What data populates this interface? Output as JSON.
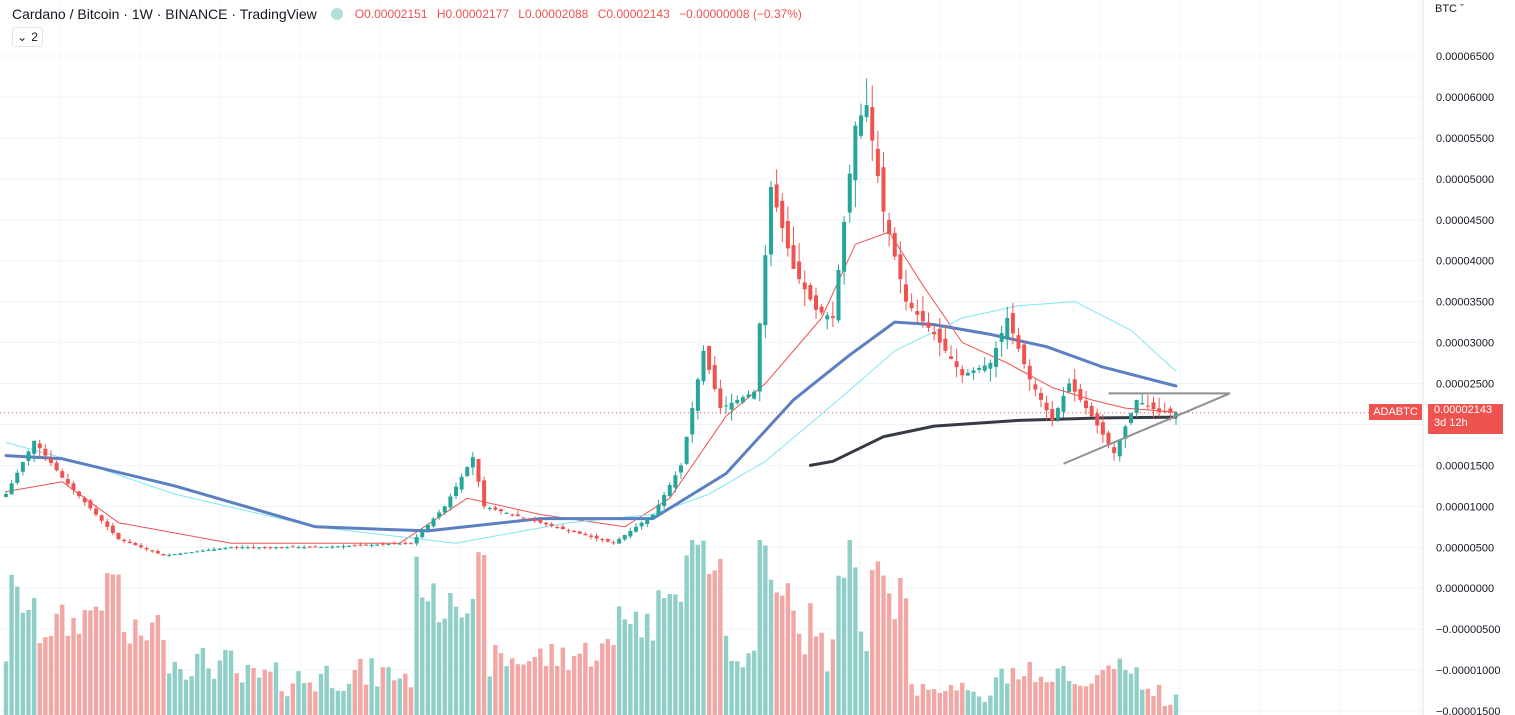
{
  "header": {
    "symbol_title": "Cardano / Bitcoin · 1W · BINANCE · TradingView",
    "market_status": "open",
    "ohlc": {
      "open_label": "O",
      "open": "0.00002151",
      "high_label": "H",
      "high": "0.00002177",
      "low_label": "L",
      "low": "0.00002088",
      "close_label": "C",
      "close": "0.00002143",
      "change": "−0.00000008 (−0.37%)"
    },
    "indicator_toggle": "2"
  },
  "price_scale": {
    "currency": "BTC",
    "symbol_tag": "ADABTC",
    "last_price": "0.00002143",
    "countdown": "3d 12h"
  },
  "colors": {
    "up": "#26a69a",
    "down": "#ef5350",
    "vol_up": "#8fcfc8",
    "vol_down": "#f2a7a5",
    "ma_fast": "#ef5350",
    "ma_cyan": "#7ee6f3",
    "ma_blue": "#5b7fc0",
    "ma_black": "#363a45",
    "triangle": "#8f8f94",
    "grid": "#f0f3fa"
  },
  "chart_data": {
    "type": "candlestick",
    "interval": "1W",
    "ylim": [
      -1.5e-05,
      6.9e-05
    ],
    "y_ticks": [
      "0.00006500",
      "0.00006000",
      "0.00005500",
      "0.00005000",
      "0.00004500",
      "0.00004000",
      "0.00003500",
      "0.00003000",
      "0.00002500",
      "0.00002000",
      "0.00001500",
      "0.00001000",
      "0.00000500",
      "0.00000000",
      "−0.00000500",
      "−0.00001000",
      "−0.00001500"
    ],
    "y_tick_values": [
      6.5e-05,
      6e-05,
      5.5e-05,
      5e-05,
      4.5e-05,
      4e-05,
      3.5e-05,
      3e-05,
      2.5e-05,
      2e-05,
      1.5e-05,
      1e-05,
      5e-06,
      0,
      -5e-06,
      -1e-05,
      -1.5e-05
    ],
    "last_close": 2.143e-05,
    "key_levels": [
      {
        "idx": 0,
        "close": 1.15e-05
      },
      {
        "idx": 5,
        "close": 1.8e-05
      },
      {
        "idx": 10,
        "close": 1.35e-05
      },
      {
        "idx": 14,
        "close": 1.05e-05
      },
      {
        "idx": 20,
        "close": 6e-06
      },
      {
        "idx": 28,
        "close": 4e-06
      },
      {
        "idx": 40,
        "close": 5e-06
      },
      {
        "idx": 55,
        "close": 5e-06
      },
      {
        "idx": 72,
        "close": 5.5e-06
      },
      {
        "idx": 78,
        "close": 1e-05
      },
      {
        "idx": 83,
        "close": 1.6e-05
      },
      {
        "idx": 85,
        "close": 1e-05
      },
      {
        "idx": 95,
        "close": 8e-06
      },
      {
        "idx": 108,
        "close": 5.5e-06
      },
      {
        "idx": 115,
        "close": 9e-06
      },
      {
        "idx": 120,
        "close": 1.5e-05
      },
      {
        "idx": 124,
        "close": 2.9e-05
      },
      {
        "idx": 127,
        "close": 2.2e-05
      },
      {
        "idx": 133,
        "close": 2.4e-05
      },
      {
        "idx": 136,
        "close": 4.9e-05
      },
      {
        "idx": 140,
        "close": 3.9e-05
      },
      {
        "idx": 144,
        "close": 3.4e-05
      },
      {
        "idx": 147,
        "close": 3.3e-05
      },
      {
        "idx": 151,
        "close": 5.65e-05
      },
      {
        "idx": 153,
        "close": 5.9e-05
      },
      {
        "idx": 156,
        "close": 4.6e-05
      },
      {
        "idx": 160,
        "close": 3.5e-05
      },
      {
        "idx": 165,
        "close": 3.1e-05
      },
      {
        "idx": 170,
        "close": 2.6e-05
      },
      {
        "idx": 175,
        "close": 2.75e-05
      },
      {
        "idx": 178,
        "close": 3.3e-05
      },
      {
        "idx": 182,
        "close": 2.55e-05
      },
      {
        "idx": 186,
        "close": 2.05e-05
      },
      {
        "idx": 189,
        "close": 2.5e-05
      },
      {
        "idx": 193,
        "close": 2.1e-05
      },
      {
        "idx": 197,
        "close": 1.65e-05
      },
      {
        "idx": 201,
        "close": 2.3e-05
      },
      {
        "idx": 205,
        "close": 2.15e-05
      },
      {
        "idx": 208,
        "close": 2.143e-05
      }
    ],
    "moving_averages": [
      {
        "color": "ma_fast",
        "points": [
          [
            0,
            1.18e-05
          ],
          [
            10,
            1.3e-05
          ],
          [
            20,
            8e-06
          ],
          [
            40,
            5.5e-06
          ],
          [
            70,
            5.5e-06
          ],
          [
            82,
            1.1e-05
          ],
          [
            95,
            9e-06
          ],
          [
            110,
            7.5e-06
          ],
          [
            118,
            1.1e-05
          ],
          [
            128,
            2.1e-05
          ],
          [
            135,
            2.5e-05
          ],
          [
            145,
            3.3e-05
          ],
          [
            151,
            4.2e-05
          ],
          [
            157,
            4.35e-05
          ],
          [
            163,
            3.7e-05
          ],
          [
            170,
            3e-05
          ],
          [
            178,
            2.75e-05
          ],
          [
            186,
            2.45e-05
          ],
          [
            193,
            2.3e-05
          ],
          [
            199,
            2.2e-05
          ],
          [
            208,
            2.15e-05
          ]
        ]
      },
      {
        "color": "ma_cyan",
        "points": [
          [
            0,
            1.78e-05
          ],
          [
            15,
            1.5e-05
          ],
          [
            30,
            1.15e-05
          ],
          [
            55,
            7.5e-06
          ],
          [
            80,
            5.5e-06
          ],
          [
            100,
            8e-06
          ],
          [
            115,
            9e-06
          ],
          [
            125,
            1.15e-05
          ],
          [
            135,
            1.55e-05
          ],
          [
            148,
            2.3e-05
          ],
          [
            158,
            2.9e-05
          ],
          [
            170,
            3.3e-05
          ],
          [
            180,
            3.45e-05
          ],
          [
            190,
            3.5e-05
          ],
          [
            200,
            3.15e-05
          ],
          [
            208,
            2.65e-05
          ]
        ]
      },
      {
        "color": "ma_blue",
        "points": [
          [
            0,
            1.62e-05
          ],
          [
            10,
            1.58e-05
          ],
          [
            30,
            1.25e-05
          ],
          [
            55,
            7.5e-06
          ],
          [
            75,
            7e-06
          ],
          [
            95,
            8.5e-06
          ],
          [
            115,
            8.5e-06
          ],
          [
            128,
            1.4e-05
          ],
          [
            140,
            2.3e-05
          ],
          [
            150,
            2.85e-05
          ],
          [
            158,
            3.25e-05
          ],
          [
            165,
            3.22e-05
          ],
          [
            175,
            3.1e-05
          ],
          [
            185,
            2.95e-05
          ],
          [
            195,
            2.7e-05
          ],
          [
            208,
            2.47e-05
          ]
        ]
      },
      {
        "color": "ma_black",
        "start": 143,
        "points": [
          [
            143,
            1.5e-05
          ],
          [
            147,
            1.55e-05
          ],
          [
            156,
            1.85e-05
          ],
          [
            165,
            1.98e-05
          ],
          [
            180,
            2.05e-05
          ],
          [
            195,
            2.08e-05
          ],
          [
            208,
            2.09e-05
          ]
        ]
      }
    ],
    "triangle": [
      [
        2.38e-05,
        2.38e-05
      ],
      [
        1.52e-05,
        2.11e-05
      ]
    ]
  }
}
